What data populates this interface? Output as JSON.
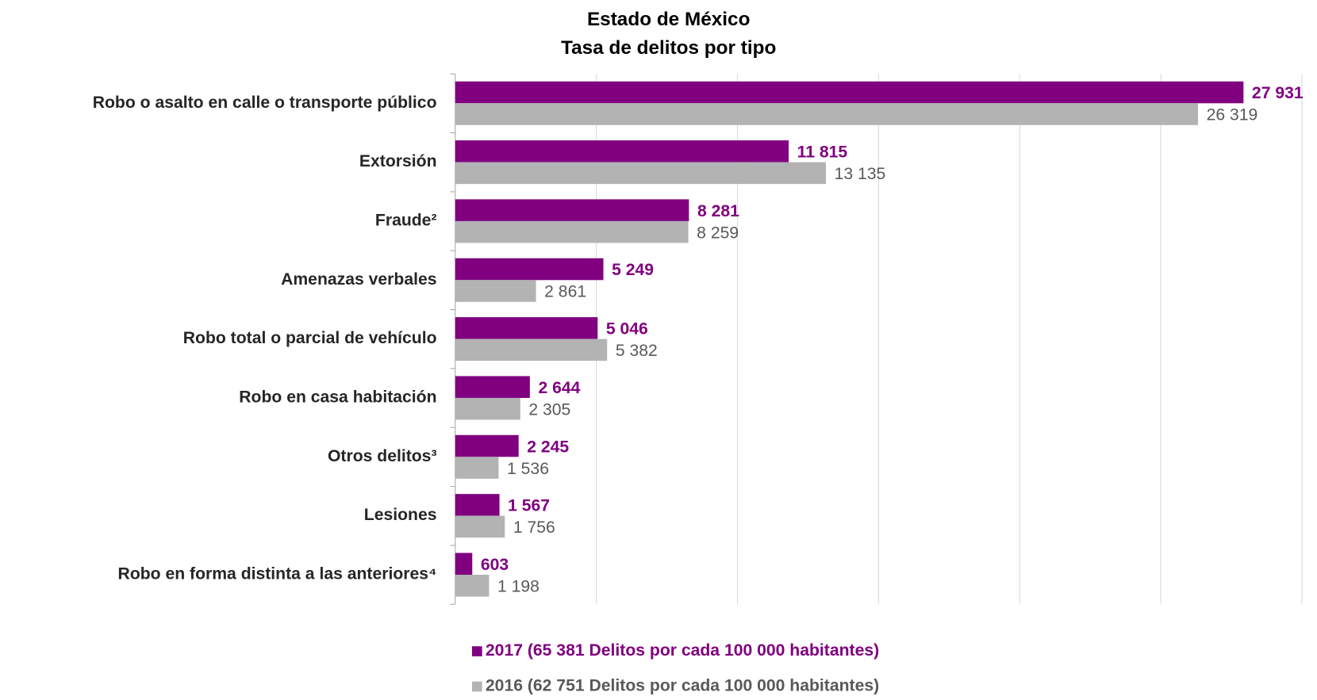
{
  "chart_data": {
    "type": "bar",
    "orientation": "horizontal",
    "title": "Estado de México",
    "subtitle": "Tasa de delitos por tipo",
    "categories": [
      "Robo o asalto en calle o transporte público",
      "Extorsión",
      "Fraude²",
      "Amenazas verbales",
      "Robo total o parcial de vehículo",
      "Robo en casa habitación",
      "Otros delitos³",
      "Lesiones",
      "Robo en forma distinta a las anteriores⁴"
    ],
    "series": [
      {
        "name": "2017 (65 381 Delitos por cada 100 000 habitantes)",
        "color": "#800080",
        "values": [
          27931,
          11815,
          8281,
          5249,
          5046,
          2644,
          2245,
          1567,
          603
        ],
        "value_labels": [
          "27 931",
          "11 815",
          "8 281",
          "5 249",
          "5 046",
          "2 644",
          "2 245",
          "1 567",
          "603"
        ]
      },
      {
        "name": "2016 (62 751 Delitos por cada 100 000 habitantes)",
        "color": "#b3b3b3",
        "values": [
          26319,
          13135,
          8259,
          2861,
          5382,
          2305,
          1536,
          1756,
          1198
        ],
        "value_labels": [
          "26 319",
          "13 135",
          "8 259",
          "2 861",
          "5 382",
          "2 305",
          "1 536",
          "1 756",
          "1 198"
        ]
      }
    ],
    "xlim": [
      0,
      30000
    ],
    "xticks": [
      0,
      5000,
      10000,
      15000,
      20000,
      25000,
      30000
    ],
    "grid": true
  }
}
